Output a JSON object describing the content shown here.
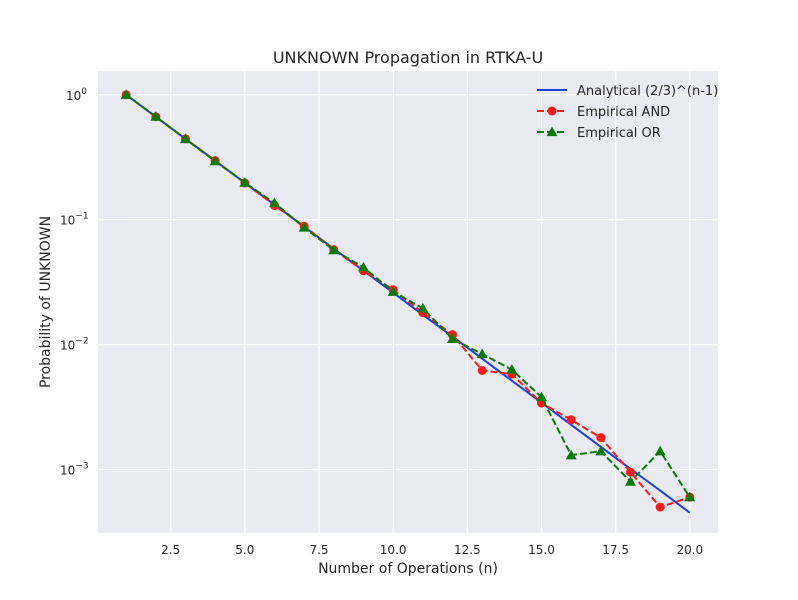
{
  "chart_data": {
    "type": "line",
    "title": "UNKNOWN Propagation in RTKA-U",
    "xlabel": "Number of Operations (n)",
    "ylabel": "Probability of UNKNOWN",
    "yscale": "log",
    "xlim": [
      0.05,
      20.95
    ],
    "ylim": [
      0.00031,
      1.55
    ],
    "grid": true,
    "legend_position": "top-right",
    "x_ticks": [
      2.5,
      5.0,
      7.5,
      10.0,
      12.5,
      15.0,
      17.5,
      20.0
    ],
    "x_tick_labels": [
      "2.5",
      "5.0",
      "7.5",
      "10.0",
      "12.5",
      "15.0",
      "17.5",
      "20.0"
    ],
    "y_ticks": [
      1,
      0.1,
      0.01,
      0.001
    ],
    "y_tick_labels": [
      {
        "base": "10",
        "exp": "0"
      },
      {
        "base": "10",
        "exp": "−1"
      },
      {
        "base": "10",
        "exp": "−2"
      },
      {
        "base": "10",
        "exp": "−3"
      }
    ],
    "x": [
      1,
      2,
      3,
      4,
      5,
      6,
      7,
      8,
      9,
      10,
      11,
      12,
      13,
      14,
      15,
      16,
      17,
      18,
      19,
      20
    ],
    "series": [
      {
        "name": "Analytical (2/3)^(n-1)",
        "color": "#1f3fe0",
        "style": "solid",
        "marker": "none",
        "values": [
          1.0,
          0.6667,
          0.4444,
          0.2963,
          0.1975,
          0.1317,
          0.0878,
          0.0585,
          0.039,
          0.026,
          0.0173,
          0.0116,
          0.00771,
          0.00514,
          0.00343,
          0.00228,
          0.00152,
          0.00101,
          0.000677,
          0.000451
        ]
      },
      {
        "name": "Empirical AND",
        "color": "#ff1a1a",
        "style": "dashed",
        "marker": "circle",
        "values": [
          1.0,
          0.667,
          0.443,
          0.297,
          0.197,
          0.13,
          0.0885,
          0.0575,
          0.039,
          0.0275,
          0.018,
          0.012,
          0.0062,
          0.0058,
          0.0034,
          0.0025,
          0.0018,
          0.00095,
          0.0005,
          0.0006
        ]
      },
      {
        "name": "Empirical OR",
        "color": "#0a7a0a",
        "style": "dashed",
        "marker": "triangle",
        "values": [
          1.0,
          0.668,
          0.442,
          0.294,
          0.198,
          0.136,
          0.0865,
          0.057,
          0.0415,
          0.0265,
          0.0195,
          0.0111,
          0.0084,
          0.0063,
          0.0038,
          0.0013,
          0.0014,
          0.0008,
          0.0014,
          0.0006
        ]
      }
    ]
  }
}
